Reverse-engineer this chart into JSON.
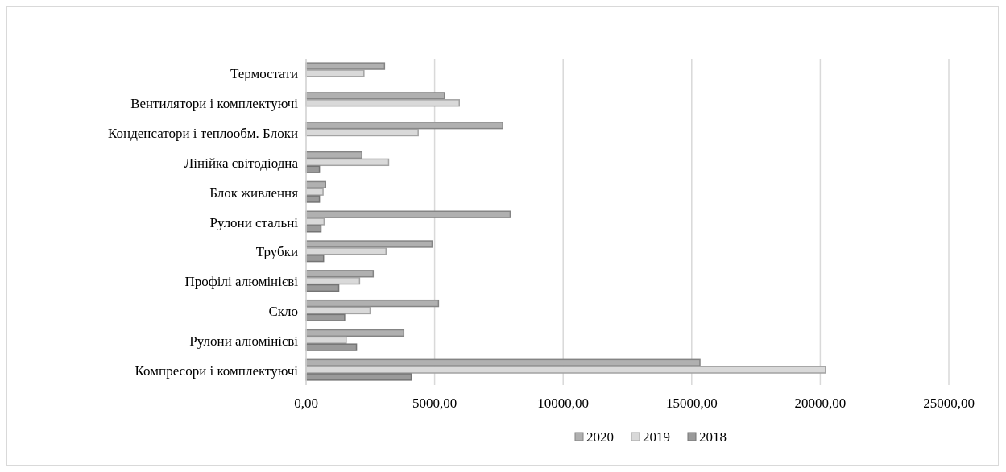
{
  "chart_data": {
    "type": "bar",
    "orientation": "horizontal",
    "categories": [
      "Термостати",
      "Вентилятори і комплектуючі",
      "Конденсатори і теплообм. Блоки",
      "Лінійка світодіодна",
      "Блок живлення",
      "Рулони стальні",
      "Трубки",
      "Профілі алюмінієві",
      "Скло",
      "Рулони алюмінієві",
      "Компресори і комплектуючі"
    ],
    "series": [
      {
        "name": "2020",
        "color": "#b0b0b0",
        "values": [
          3050,
          5380,
          7650,
          2170,
          760,
          7940,
          4900,
          2610,
          5150,
          3800,
          15320
        ]
      },
      {
        "name": "2019",
        "color": "#d9d9d9",
        "values": [
          2250,
          5960,
          4360,
          3210,
          660,
          700,
          3110,
          2080,
          2490,
          1560,
          20200
        ]
      },
      {
        "name": "2018",
        "color": "#9a9a9a",
        "values": [
          null,
          null,
          null,
          520,
          520,
          580,
          680,
          1270,
          1500,
          1960,
          4090
        ]
      }
    ],
    "xlim": [
      0,
      25000
    ],
    "xticks": [
      {
        "value": 0,
        "label": "0,00"
      },
      {
        "value": 5000,
        "label": "5000,00"
      },
      {
        "value": 10000,
        "label": "10000,00"
      },
      {
        "value": 15000,
        "label": "15000,00"
      },
      {
        "value": 20000,
        "label": "20000,00"
      },
      {
        "value": 25000,
        "label": "25000,00"
      }
    ],
    "grid": "x",
    "legend": "bottom"
  }
}
